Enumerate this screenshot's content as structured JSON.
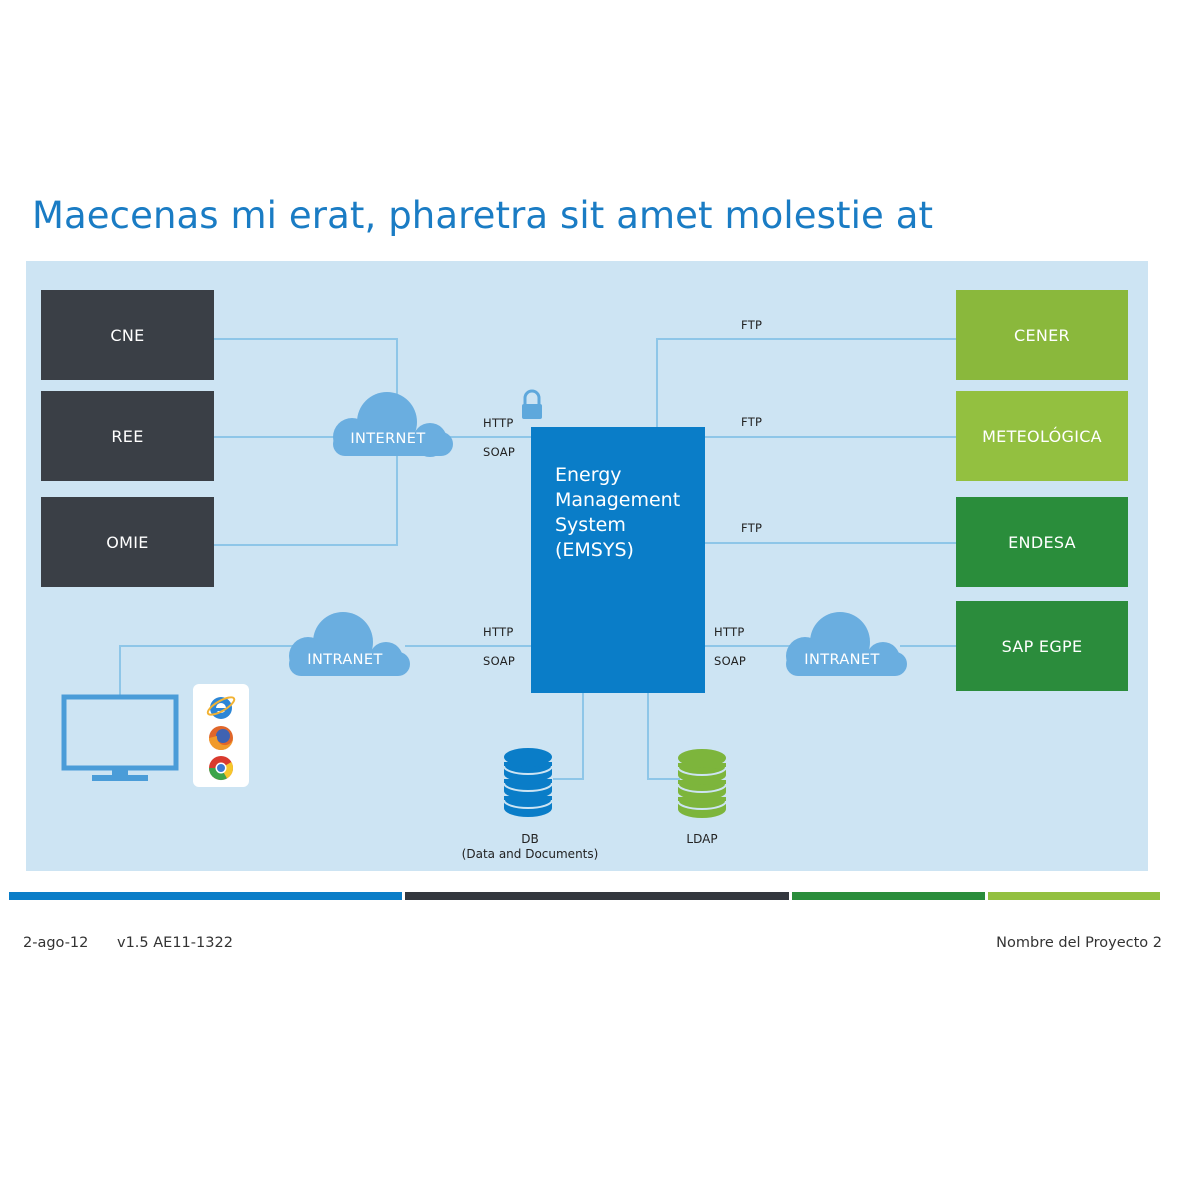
{
  "title": "Maecenas mi erat, pharetra sit amet molestie at",
  "sources": [
    {
      "label": "CNE"
    },
    {
      "label": "REE"
    },
    {
      "label": "OMIE"
    }
  ],
  "destinations": [
    {
      "label": "CENER",
      "protocol": "FTP"
    },
    {
      "label": "METEOLÓGICA",
      "protocol": "FTP"
    },
    {
      "label": "ENDESA",
      "protocol": "FTP"
    },
    {
      "label": "SAP EGPE"
    }
  ],
  "clouds": {
    "internet": "INTERNET",
    "intranet_left": "INTRANET",
    "intranet_right": "INTRANET"
  },
  "emsys": {
    "lines": [
      "Energy",
      "Management",
      "System",
      "(EMSYS)"
    ]
  },
  "protocols": {
    "http": "HTTP",
    "soap": "SOAP"
  },
  "storage": {
    "db_label": "DB",
    "db_sub": "(Data and Documents)",
    "ldap_label": "LDAP"
  },
  "icons": [
    "lock-icon",
    "monitor-icon",
    "internet-explorer-icon",
    "firefox-icon",
    "chrome-icon",
    "database-icon"
  ],
  "colors": {
    "title": "#1a7cc4",
    "panel": "#cde4f3",
    "emsys": "#0a7dc8",
    "dark_box": "#3a3f46",
    "light_green": "#8ab83c",
    "dark_green": "#2a8d3b",
    "line": "#8ec6e8"
  },
  "footer": {
    "date": "2-ago-12",
    "version": "v1.5 AE11-1322",
    "project": "Nombre del Proyecto 2"
  }
}
